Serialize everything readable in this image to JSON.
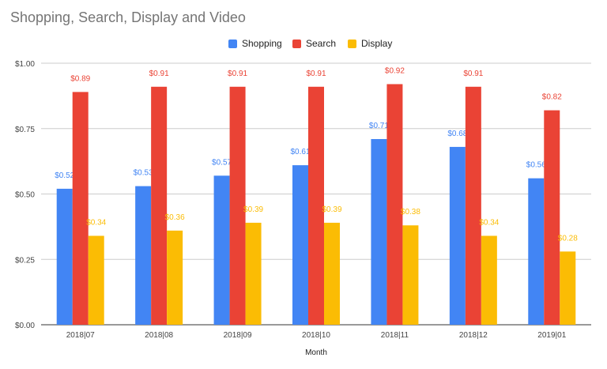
{
  "chart_data": {
    "type": "bar",
    "title": "Shopping, Search, Display and Video",
    "xlabel": "Month",
    "ylabel": "",
    "ylim": [
      0,
      1
    ],
    "yticks": [
      "$0.00",
      "$0.25",
      "$0.50",
      "$0.75",
      "$1.00"
    ],
    "ytick_values": [
      0,
      0.25,
      0.5,
      0.75,
      1.0
    ],
    "grid": true,
    "legend_position": "top-center",
    "categories": [
      "2018|07",
      "2018|08",
      "2018|09",
      "2018|10",
      "2018|11",
      "2018|12",
      "2019|01"
    ],
    "series": [
      {
        "name": "Shopping",
        "color": "#4285f4",
        "values": [
          0.52,
          0.53,
          0.57,
          0.61,
          0.71,
          0.68,
          0.56
        ],
        "labels": [
          "$0.52",
          "$0.53",
          "$0.57",
          "$0.61",
          "$0.71",
          "$0.68",
          "$0.56"
        ]
      },
      {
        "name": "Search",
        "color": "#ea4335",
        "values": [
          0.89,
          0.91,
          0.91,
          0.91,
          0.92,
          0.91,
          0.82
        ],
        "labels": [
          "$0.89",
          "$0.91",
          "$0.91",
          "$0.91",
          "$0.92",
          "$0.91",
          "$0.82"
        ]
      },
      {
        "name": "Display",
        "color": "#fbbc04",
        "values": [
          0.34,
          0.36,
          0.39,
          0.39,
          0.38,
          0.34,
          0.28
        ],
        "labels": [
          "$0.34",
          "$0.36",
          "$0.39",
          "$0.39",
          "$0.38",
          "$0.34",
          "$0.28"
        ]
      }
    ]
  }
}
